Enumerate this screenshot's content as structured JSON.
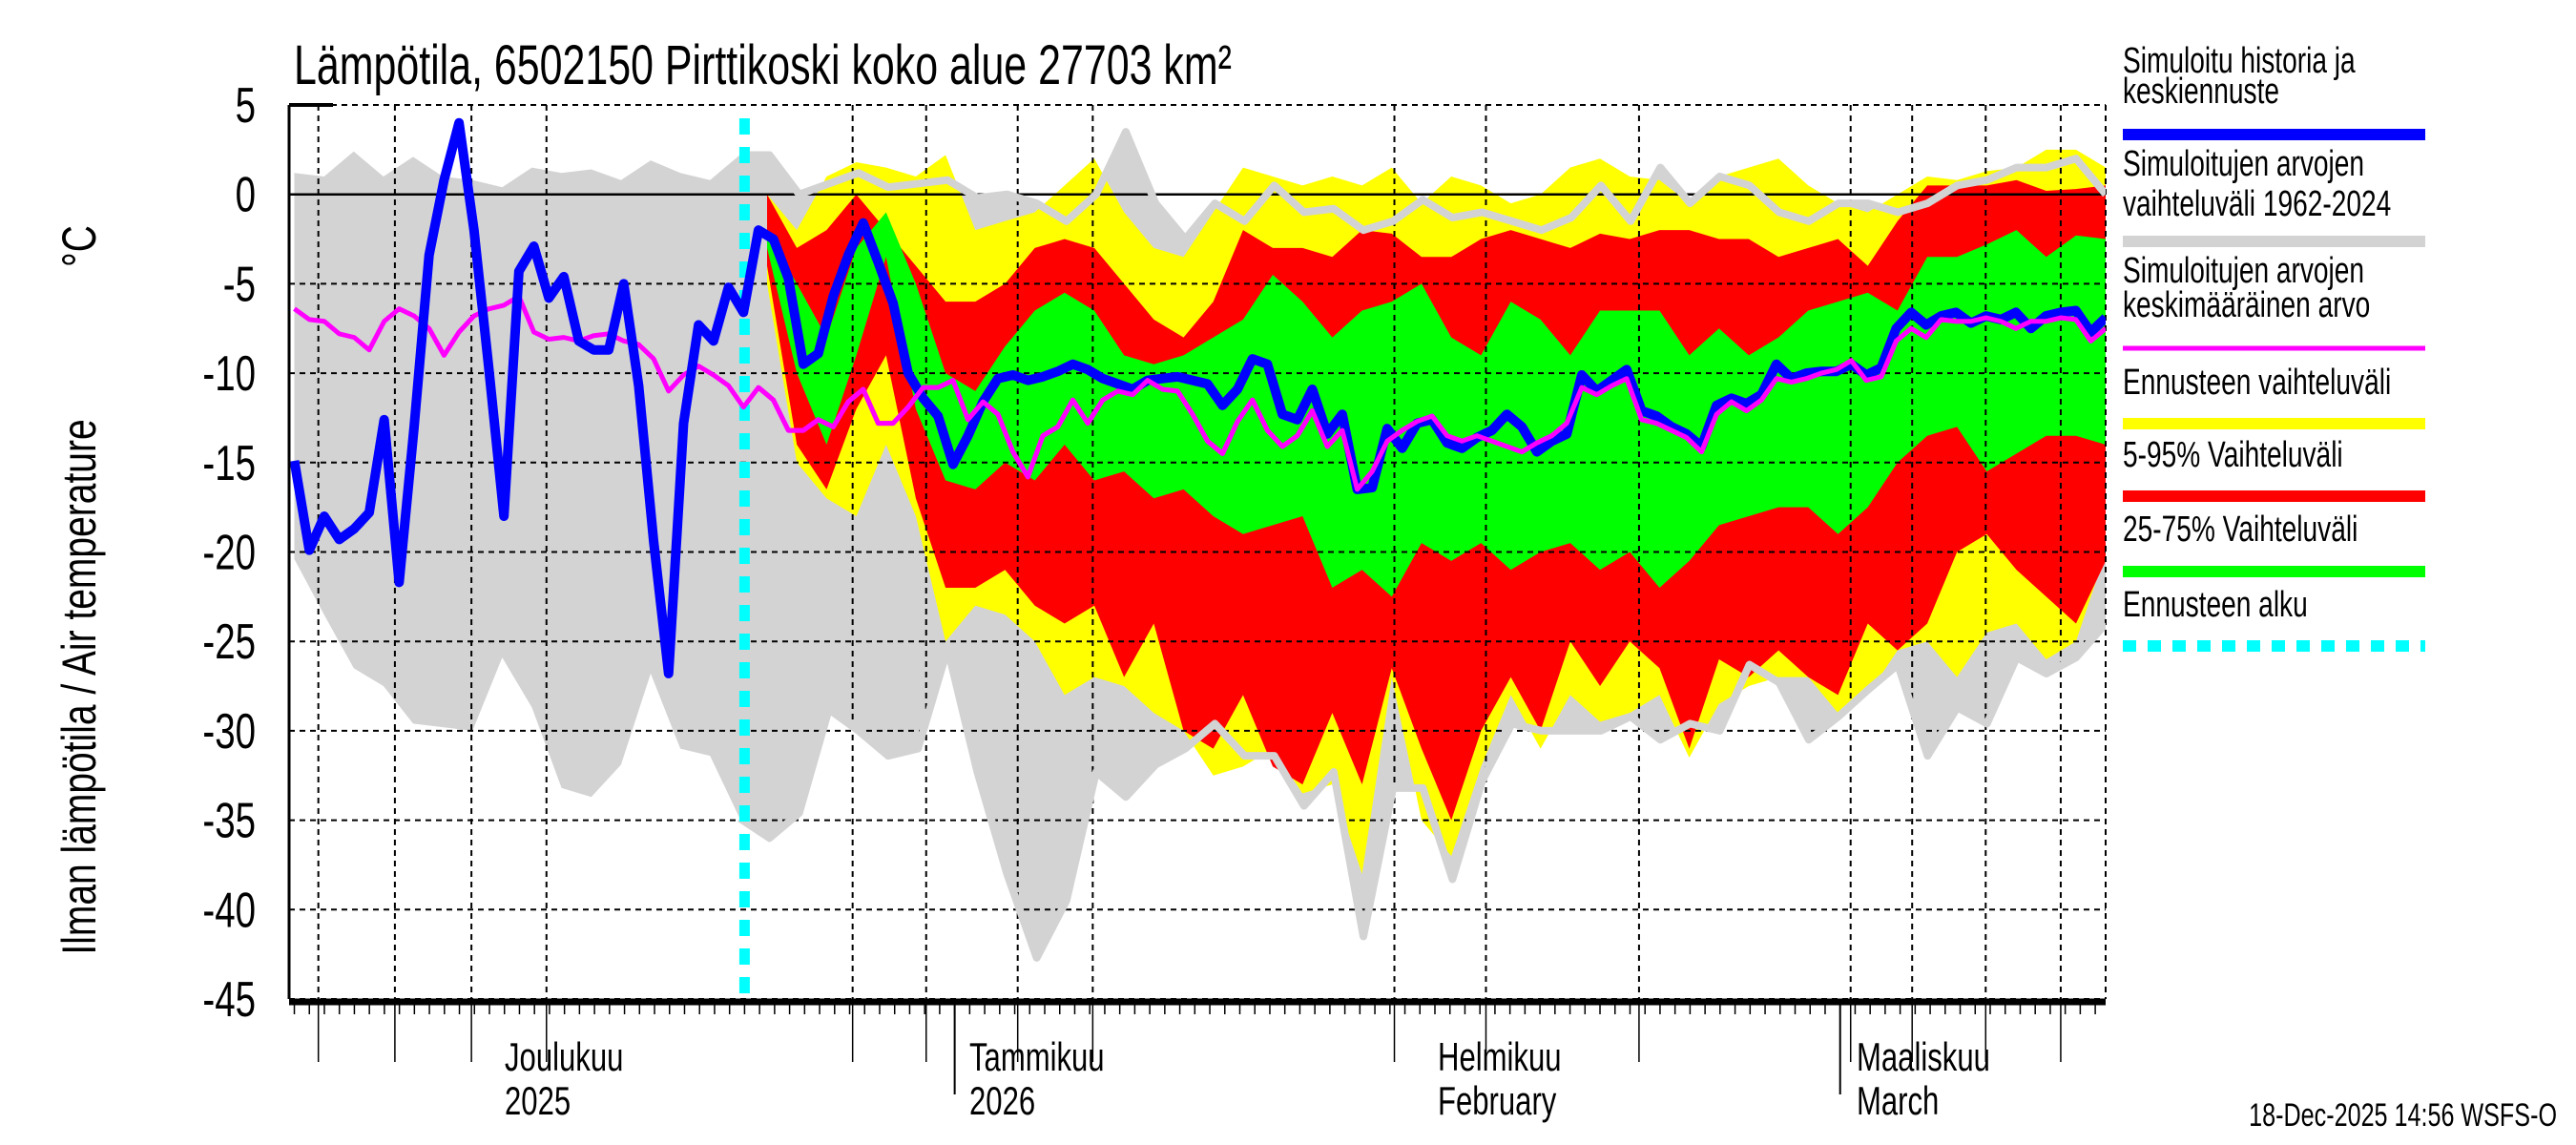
{
  "chart_data": {
    "type": "area",
    "title": "Lämpötila, 6502150 Pirttikoski koko alue 27703 km²",
    "ylabel": "Ilman lämpötila / Air temperature",
    "ylabel_unit": "°C",
    "ylim": [
      -45,
      5
    ],
    "yticks": [
      "5",
      "0",
      "-5",
      "-10",
      "-15",
      "-20",
      "-25",
      "-30",
      "-35",
      "-40",
      "-45"
    ],
    "x_unit": "days since 17-Nov-2025",
    "xlim": [
      0.65,
      121.7
    ],
    "forecast_start_day": 31,
    "grid": true,
    "x_month_labels": [
      {
        "line1": "Joulukuu",
        "line2": "2025",
        "day": 14
      },
      {
        "line1": "Tammikuu",
        "line2": "2026",
        "day": 45
      },
      {
        "line1": "Helmikuu",
        "line2": "February",
        "day": 76
      },
      {
        "line1": "Maaliskuu",
        "line2": "March",
        "day": 104
      }
    ],
    "legend": {
      "placement": "right",
      "entries": [
        {
          "line1": "Simuloitu historia ja",
          "line2": "keskiennuste",
          "color": "#0000ff"
        },
        {
          "line1": "Simuloitujen arvojen",
          "line2": "vaihteluväli 1962-2024",
          "color": "#d3d3d3"
        },
        {
          "line1": "Simuloitujen arvojen",
          "line2": "keskimääräinen arvo",
          "color": "#ff00ff"
        },
        {
          "line1": "Ennusteen vaihteluväli",
          "color": "#ffff00"
        },
        {
          "line1": "5-95% Vaihteluväli",
          "color": "#ff0000"
        },
        {
          "line1": "25-75% Vaihteluväli",
          "color": "#00ff00"
        },
        {
          "line1": "Ennusteen alku",
          "color": "#00ffff"
        }
      ]
    },
    "bands": {
      "history_range": {
        "color": "#d3d3d3",
        "x_start": 1,
        "x_end": 121.7,
        "upper": [
          1.2,
          1,
          2.4,
          1,
          2.1,
          1,
          0.8,
          0.4,
          1.5,
          1.2,
          1.4,
          0.8,
          1.9,
          1.2,
          0.8,
          2.2,
          2.2,
          0,
          0.6,
          1.2,
          0.4,
          0.6,
          0.8,
          -0.2,
          0,
          -0.5,
          -1.5,
          0,
          3.5,
          -0.5,
          -2.5,
          -0.5,
          -1.5,
          0.5,
          -1,
          -0.8,
          -2,
          -1.5,
          -0.3,
          -1.3,
          -1,
          -1.5,
          -2,
          -1.3,
          0.5,
          -1.5,
          1.5,
          -0.5,
          1,
          0.5,
          -1,
          -1.5,
          -0.5,
          -0.5,
          -1,
          -0.5,
          0.5,
          0.8,
          1.5,
          1.5,
          2,
          0
        ],
        "lower": [
          -20.4,
          -23.5,
          -26.5,
          -27.5,
          -29.6,
          -29.8,
          -30,
          -25.9,
          -28.7,
          -33.2,
          -33.7,
          -31.9,
          -26.8,
          -31,
          -31.4,
          -34.9,
          -36,
          -34.6,
          -28.8,
          -30,
          -31.4,
          -31,
          -25.4,
          -32.3,
          -38,
          -42.7,
          -39.5,
          -32.3,
          -33.7,
          -31.9,
          -31,
          -29.6,
          -31.4,
          -31.4,
          -34.2,
          -32.3,
          -41.5,
          -33.2,
          -33.2,
          -38.3,
          -32.8,
          -29.6,
          -30,
          -30,
          -30,
          -29.2,
          -30.5,
          -29.6,
          -30,
          -26.3,
          -27.3,
          -30.5,
          -29.2,
          -27.7,
          -26.3,
          -31.4,
          -28.7,
          -29.6,
          -25.9,
          -26.8,
          -25.9,
          -24
        ]
      },
      "forecast_range": {
        "color": "#ffff00",
        "x_start": 32.5,
        "x_end": 121.7,
        "upper": [
          0,
          -2,
          1,
          1.8,
          1.5,
          1,
          2.2,
          -2,
          -1.5,
          -1,
          0.5,
          2,
          -1,
          -3,
          -3.5,
          -1,
          1.5,
          1,
          0.5,
          1,
          0.5,
          1.5,
          -0.5,
          1,
          0.5,
          -0.5,
          0,
          1.5,
          2,
          1,
          0.8,
          -0.5,
          1,
          1.5,
          2,
          0.5,
          -0.5,
          -1,
          0,
          1,
          0.8,
          1.3,
          1.5,
          2.5,
          2.5,
          1.5
        ],
        "lower": [
          -5,
          -15,
          -17,
          -18,
          -14,
          -18,
          -25,
          -23,
          -23.5,
          -25,
          -28,
          -27,
          -27.5,
          -29,
          -30,
          -32.5,
          -32,
          -31,
          -33.5,
          -33,
          -38,
          -27,
          -35,
          -37,
          -32,
          -28,
          -31,
          -28,
          -29.5,
          -29,
          -28,
          -31.5,
          -28.5,
          -27.5,
          -27,
          -27,
          -29,
          -28,
          -25.5,
          -25,
          -27,
          -24.5,
          -24,
          -26,
          -25,
          -20
        ]
      },
      "p5_95": {
        "color": "#ff0000",
        "x_start": 32.5,
        "x_end": 121.7,
        "upper": [
          0,
          -3,
          -2,
          0,
          -2,
          -4,
          -6,
          -6,
          -5,
          -3,
          -2.5,
          -3,
          -5,
          -7,
          -8,
          -6,
          -2,
          -3,
          -3,
          -3.5,
          -2,
          -2.2,
          -3.5,
          -3.5,
          -2.5,
          -2,
          -2.5,
          -3,
          -2.2,
          -2.5,
          -2,
          -2,
          -2.5,
          -2.5,
          -3.5,
          -3,
          -2.5,
          -4,
          -1.5,
          0.5,
          0.5,
          0.5,
          0.8,
          0.2,
          0.3,
          0.5
        ],
        "lower": [
          -4,
          -14,
          -16.5,
          -12,
          -9,
          -17,
          -22,
          -22,
          -21,
          -23,
          -24,
          -23,
          -27,
          -24,
          -30,
          -31,
          -28,
          -32,
          -33,
          -29,
          -33,
          -26.5,
          -31,
          -35,
          -30,
          -27,
          -30,
          -25,
          -27.5,
          -25,
          -26.5,
          -31,
          -26,
          -27,
          -25.5,
          -27,
          -28,
          -24,
          -25.5,
          -24,
          -20,
          -19,
          -21,
          -22.5,
          -24,
          -20.5
        ]
      },
      "p25_75": {
        "color": "#00ff00",
        "x_start": 32.5,
        "x_end": 121.7,
        "upper": [
          -2,
          -5,
          -8,
          -3,
          -1,
          -5,
          -10,
          -11,
          -8.5,
          -6.5,
          -5.5,
          -6.5,
          -9,
          -9.5,
          -9,
          -8,
          -7,
          -4.5,
          -6,
          -8,
          -6.5,
          -6,
          -5,
          -8,
          -9,
          -6,
          -7,
          -9,
          -6.5,
          -6.5,
          -6.5,
          -9,
          -7.5,
          -9,
          -8,
          -6.5,
          -6,
          -5.5,
          -6.5,
          -3.5,
          -3.5,
          -2.8,
          -2,
          -3.5,
          -2.3,
          -2.5
        ],
        "lower": [
          -3,
          -10,
          -14,
          -9,
          -3.5,
          -12,
          -16,
          -16.5,
          -15,
          -16,
          -14,
          -16,
          -15.5,
          -17,
          -16.5,
          -18,
          -19,
          -18.5,
          -18,
          -22,
          -21,
          -22.5,
          -19.5,
          -20.5,
          -19.5,
          -21,
          -20,
          -19.5,
          -21,
          -20,
          -22,
          -20.5,
          -18.5,
          -18,
          -17.5,
          -17.5,
          -19,
          -17.5,
          -15,
          -13.5,
          -13,
          -15.5,
          -14.5,
          -13.5,
          -13.5,
          -14
        ]
      }
    },
    "series": [
      {
        "name": "Simuloitu historia ja keskiennuste",
        "color": "#0000ff",
        "x_start": 1,
        "x_end": 121.7,
        "values": [
          -14.9,
          -19.9,
          -18,
          -19.3,
          -18.7,
          -17.8,
          -12.6,
          -21.7,
          -13,
          -3.4,
          0.8,
          4,
          -2,
          -9.8,
          -18,
          -4.3,
          -2.9,
          -5.8,
          -4.6,
          -8.2,
          -8.7,
          -8.7,
          -5,
          -10.7,
          -19.4,
          -26.8,
          -12.8,
          -7.3,
          -8.2,
          -5.2,
          -6.6,
          -2,
          -2.5,
          -4.7,
          -9.5,
          -8.9,
          -5.7,
          -3.4,
          -1.6,
          -3.8,
          -6.1,
          -10,
          -11.4,
          -12.4,
          -15.1,
          -13.5,
          -11.6,
          -10.3,
          -10.1,
          -10.4,
          -10.2,
          -9.9,
          -9.5,
          -9.8,
          -10.3,
          -10.6,
          -10.9,
          -10.4,
          -10.3,
          -10.2,
          -10.4,
          -10.6,
          -11.8,
          -10.9,
          -9.2,
          -9.5,
          -12.3,
          -12.6,
          -10.9,
          -13.4,
          -12.3,
          -16.5,
          -16.4,
          -13.1,
          -14.2,
          -12.8,
          -12.6,
          -13.9,
          -14.2,
          -13.6,
          -13.2,
          -12.3,
          -13,
          -14.4,
          -13.8,
          -13.4,
          -10.1,
          -11,
          -10.4,
          -9.8,
          -12.1,
          -12.4,
          -13,
          -13.4,
          -14.1,
          -11.8,
          -11.4,
          -11.7,
          -11.2,
          -9.5,
          -10.3,
          -10,
          -9.9,
          -9.9,
          -9.5,
          -10.1,
          -9.7,
          -7.5,
          -6.6,
          -7.3,
          -6.8,
          -6.6,
          -7.2,
          -6.8,
          -7,
          -6.6,
          -7.5,
          -6.8,
          -6.6,
          -6.5,
          -7.7,
          -6.9
        ]
      },
      {
        "name": "Simuloitujen arvojen keskimääräinen arvo",
        "color": "#ff00ff",
        "x_start": 1,
        "x_end": 121.7,
        "values": [
          -6.4,
          -7,
          -7.1,
          -7.8,
          -8,
          -8.7,
          -7.1,
          -6.4,
          -6.8,
          -7.5,
          -9,
          -7.7,
          -6.8,
          -6.4,
          -6.2,
          -5.7,
          -7.7,
          -8.1,
          -8,
          -8.2,
          -7.9,
          -7.8,
          -8.2,
          -8.4,
          -9.2,
          -11,
          -10.1,
          -9.6,
          -10.1,
          -10.7,
          -11.9,
          -10.8,
          -11.5,
          -13.2,
          -13.2,
          -12.6,
          -13,
          -11.6,
          -10.9,
          -12.8,
          -12.8,
          -11.9,
          -10.8,
          -10.8,
          -10.4,
          -12.6,
          -11.6,
          -12.3,
          -14.4,
          -15.8,
          -13.5,
          -13,
          -11.5,
          -12.8,
          -11.5,
          -11,
          -11.2,
          -10.4,
          -10.9,
          -11,
          -12.3,
          -13.8,
          -14.5,
          -12.7,
          -11.5,
          -13.2,
          -14.1,
          -13.5,
          -12.1,
          -14.1,
          -13.2,
          -16.5,
          -15.5,
          -13.8,
          -13.2,
          -12.7,
          -12.4,
          -13.5,
          -13.8,
          -13.5,
          -13.8,
          -14.1,
          -14.4,
          -13.9,
          -13.5,
          -12.8,
          -10.8,
          -11.2,
          -10.7,
          -10.3,
          -12.6,
          -12.8,
          -13.2,
          -13.6,
          -14.4,
          -12.3,
          -11.6,
          -12.1,
          -11.5,
          -10.3,
          -10.5,
          -10.3,
          -10,
          -9.8,
          -9.3,
          -10.4,
          -10.2,
          -8.2,
          -7.5,
          -8,
          -7,
          -7.1,
          -7.1,
          -6.9,
          -7.1,
          -7.5,
          -7.1,
          -7.1,
          -6.9,
          -7,
          -8.2,
          -7.5
        ]
      }
    ]
  },
  "footer": "18-Dec-2025 14:56 WSFS-O"
}
